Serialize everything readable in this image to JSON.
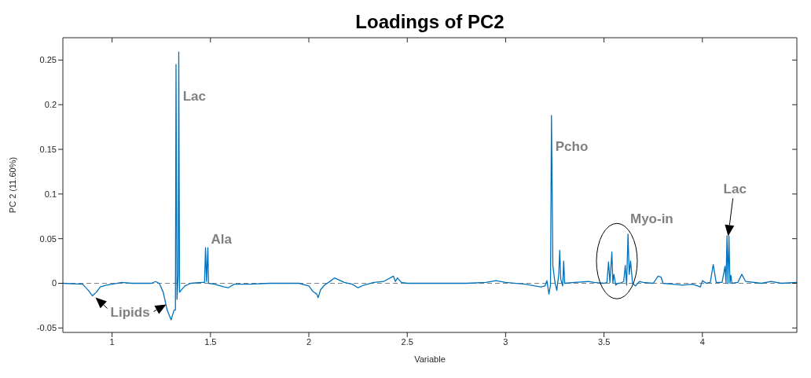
{
  "chart_data": {
    "type": "line",
    "title": "Loadings of PC2",
    "xlabel": "Variable",
    "ylabel": "PC 2 (11.60%)",
    "xlim": [
      0.75,
      4.48
    ],
    "ylim": [
      -0.055,
      0.275
    ],
    "xticks": [
      1,
      1.5,
      2,
      2.5,
      3,
      3.5,
      4
    ],
    "yticks": [
      -0.05,
      0,
      0.05,
      0.1,
      0.15,
      0.2,
      0.25
    ],
    "ref_lines": [
      {
        "axis": "y",
        "value": 0,
        "color": "#808080",
        "line_style": "dashed"
      }
    ],
    "annotations": [
      {
        "text": "Lac",
        "x": 1.36,
        "y": 0.21
      },
      {
        "text": "Ala",
        "x": 1.487,
        "y": 0.04
      },
      {
        "text": "Pcho",
        "x": 3.233,
        "y": 0.188
      },
      "Myo-in",
      "Lac",
      {
        "text": "Lipids",
        "x": 0.9,
        "y": -0.014
      }
    ],
    "series": [
      {
        "color": "#0072bd",
        "x": [
          0.75,
          0.85,
          0.88,
          0.9,
          0.92,
          0.94,
          0.97,
          1.0,
          1.05,
          1.1,
          1.2,
          1.22,
          1.24,
          1.26,
          1.28,
          1.3,
          1.315,
          1.322,
          1.325,
          1.33,
          1.336,
          1.339,
          1.343,
          1.35,
          1.37,
          1.4,
          1.46,
          1.47,
          1.475,
          1.48,
          1.487,
          1.49,
          1.52,
          1.57,
          1.59,
          1.62,
          1.7,
          1.8,
          1.9,
          1.95,
          2.0,
          2.02,
          2.04,
          2.047,
          2.06,
          2.08,
          2.1,
          2.13,
          2.15,
          2.18,
          2.22,
          2.25,
          2.28,
          2.33,
          2.38,
          2.43,
          2.44,
          2.45,
          2.47,
          2.5,
          2.6,
          2.7,
          2.8,
          2.9,
          2.95,
          3.0,
          3.1,
          3.15,
          3.18,
          3.2,
          3.21,
          3.22,
          3.228,
          3.233,
          3.24,
          3.25,
          3.26,
          3.27,
          3.275,
          3.28,
          3.29,
          3.295,
          3.3,
          3.35,
          3.42,
          3.45,
          3.5,
          3.515,
          3.523,
          3.53,
          3.54,
          3.545,
          3.55,
          3.56,
          3.57,
          3.58,
          3.6,
          3.608,
          3.615,
          3.622,
          3.628,
          3.635,
          3.645,
          3.66,
          3.68,
          3.7,
          3.75,
          3.775,
          3.79,
          3.8,
          3.85,
          3.9,
          3.95,
          3.99,
          4.0,
          4.02,
          4.04,
          4.055,
          4.07,
          4.1,
          4.115,
          4.12,
          4.125,
          4.13,
          4.135,
          4.14,
          4.145,
          4.15,
          4.18,
          4.2,
          4.22,
          4.3,
          4.35,
          4.4,
          4.48
        ],
        "values": [
          0,
          -0.001,
          -0.008,
          -0.014,
          -0.01,
          -0.004,
          -0.002,
          -0.001,
          0.001,
          0,
          0,
          0.002,
          0,
          -0.01,
          -0.03,
          -0.041,
          -0.03,
          -0.03,
          0.245,
          -0.018,
          0.01,
          0.259,
          -0.01,
          -0.008,
          -0.003,
          0,
          0.001,
          0.001,
          0.04,
          0.002,
          0.04,
          0,
          -0.001,
          -0.004,
          -0.005,
          -0.001,
          -0.001,
          0,
          0,
          0,
          -0.003,
          -0.009,
          -0.012,
          -0.016,
          -0.007,
          -0.002,
          0.001,
          0.006,
          0.004,
          0.001,
          -0.001,
          -0.005,
          -0.002,
          0.001,
          0.002,
          0.008,
          0.002,
          0.006,
          0.001,
          0,
          0,
          0,
          0,
          0.001,
          0.003,
          0.001,
          -0.001,
          -0.003,
          -0.004,
          -0.003,
          0.003,
          -0.012,
          -0.002,
          0.188,
          0.02,
          0.002,
          -0.008,
          0.01,
          0.037,
          0.005,
          -0.003,
          0.025,
          0,
          0.001,
          0.002,
          0.001,
          0,
          0.001,
          0.024,
          0.001,
          0.035,
          0,
          0.01,
          -0.002,
          0,
          0,
          0.002,
          0.02,
          -0.002,
          0.055,
          0.01,
          0.025,
          0,
          -0.003,
          0.002,
          0.001,
          0,
          0.008,
          0.007,
          0,
          -0.001,
          -0.002,
          -0.001,
          -0.004,
          0.003,
          0,
          0.001,
          0.021,
          0.001,
          0.001,
          0.019,
          0,
          0.053,
          0,
          0.053,
          0,
          0.009,
          0,
          0.001,
          0.01,
          0.002,
          0,
          0.002,
          0,
          0.001
        ]
      }
    ]
  }
}
